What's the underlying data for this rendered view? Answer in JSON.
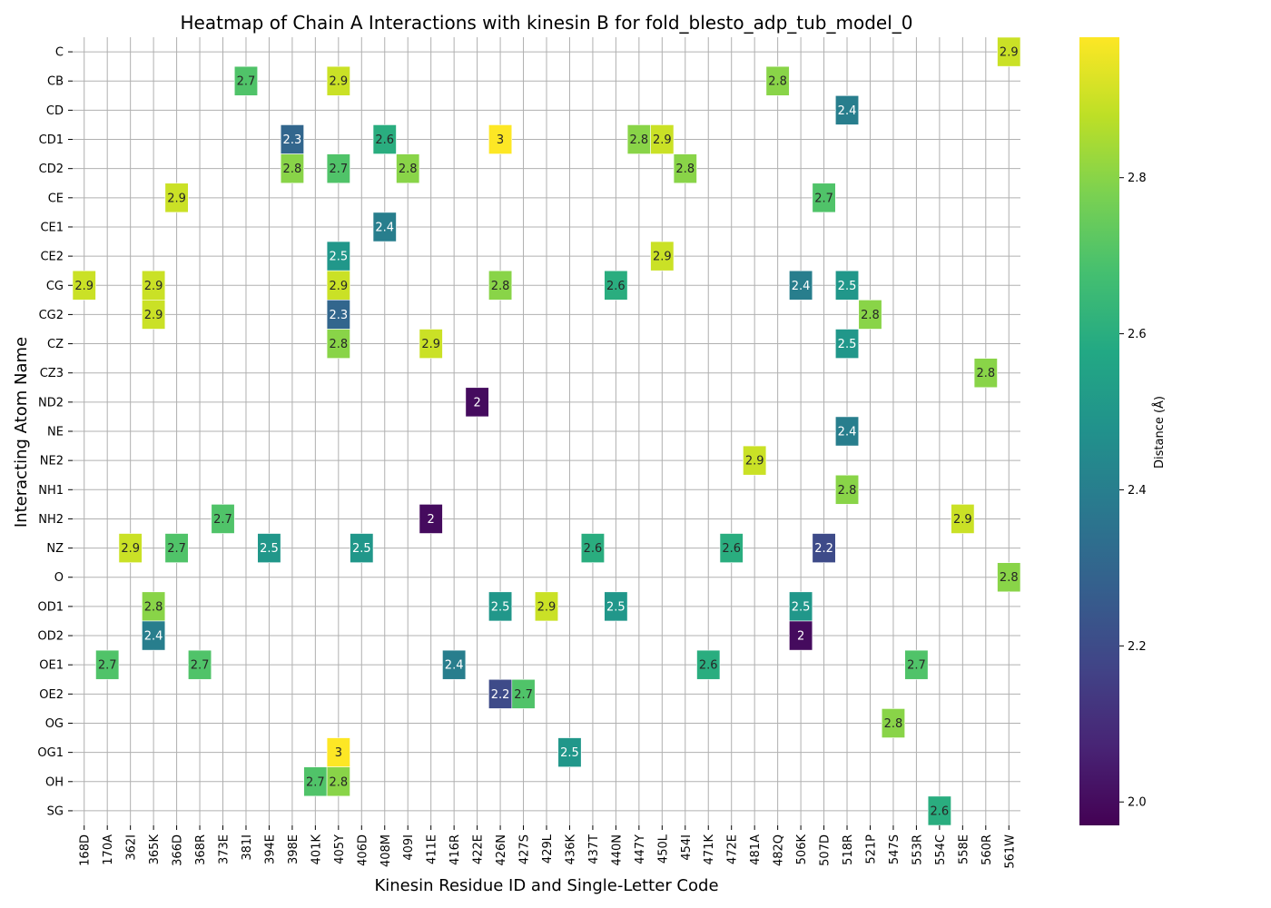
{
  "chart_data": {
    "type": "heatmap",
    "title": "Heatmap of Chain A Interactions with kinesin B for fold_blesto_adp_tub_model_0",
    "xlabel": "Kinesin Residue ID and Single-Letter Code",
    "ylabel": "Interacting Atom Name",
    "colorbar_label": "Distance (Å)",
    "colorbar_ticks": [
      "2.0",
      "2.2",
      "2.4",
      "2.6",
      "2.8"
    ],
    "colorbar_range": [
      1.97,
      2.98
    ],
    "colormap": "viridis",
    "grid": true,
    "x_categories": [
      "168D",
      "170A",
      "362I",
      "365K",
      "366D",
      "368R",
      "373E",
      "381I",
      "394E",
      "398E",
      "401K",
      "405Y",
      "406D",
      "408M",
      "409I",
      "411E",
      "416R",
      "422E",
      "426N",
      "427S",
      "429L",
      "436K",
      "437T",
      "440N",
      "447Y",
      "450L",
      "454I",
      "471K",
      "472E",
      "481A",
      "482Q",
      "506K",
      "507D",
      "518R",
      "521P",
      "547S",
      "553R",
      "554C",
      "558E",
      "560R",
      "561W"
    ],
    "y_categories": [
      "C",
      "CB",
      "CD",
      "CD1",
      "CD2",
      "CE",
      "CE1",
      "CE2",
      "CG",
      "CG2",
      "CZ",
      "CZ3",
      "ND2",
      "NE",
      "NE2",
      "NH1",
      "NH2",
      "NZ",
      "O",
      "OD1",
      "OD2",
      "OE1",
      "OE2",
      "OG",
      "OG1",
      "OH",
      "SG"
    ],
    "cells": [
      {
        "x": "561W",
        "y": "C",
        "value": 2.9
      },
      {
        "x": "381I",
        "y": "CB",
        "value": 2.7
      },
      {
        "x": "405Y",
        "y": "CB",
        "value": 2.9
      },
      {
        "x": "482Q",
        "y": "CB",
        "value": 2.8
      },
      {
        "x": "518R",
        "y": "CD",
        "value": 2.4
      },
      {
        "x": "398E",
        "y": "CD1",
        "value": 2.3
      },
      {
        "x": "408M",
        "y": "CD1",
        "value": 2.6
      },
      {
        "x": "426N",
        "y": "CD1",
        "value": 3
      },
      {
        "x": "447Y",
        "y": "CD1",
        "value": 2.8
      },
      {
        "x": "450L",
        "y": "CD1",
        "value": 2.9
      },
      {
        "x": "398E",
        "y": "CD2",
        "value": 2.8
      },
      {
        "x": "405Y",
        "y": "CD2",
        "value": 2.7
      },
      {
        "x": "409I",
        "y": "CD2",
        "value": 2.8
      },
      {
        "x": "454I",
        "y": "CD2",
        "value": 2.8
      },
      {
        "x": "366D",
        "y": "CE",
        "value": 2.9
      },
      {
        "x": "507D",
        "y": "CE",
        "value": 2.7
      },
      {
        "x": "408M",
        "y": "CE1",
        "value": 2.4
      },
      {
        "x": "405Y",
        "y": "CE2",
        "value": 2.5
      },
      {
        "x": "450L",
        "y": "CE2",
        "value": 2.9
      },
      {
        "x": "168D",
        "y": "CG",
        "value": 2.9
      },
      {
        "x": "365K",
        "y": "CG",
        "value": 2.9
      },
      {
        "x": "405Y",
        "y": "CG",
        "value": 2.9
      },
      {
        "x": "426N",
        "y": "CG",
        "value": 2.8
      },
      {
        "x": "440N",
        "y": "CG",
        "value": 2.6
      },
      {
        "x": "506K",
        "y": "CG",
        "value": 2.4
      },
      {
        "x": "518R",
        "y": "CG",
        "value": 2.5
      },
      {
        "x": "365K",
        "y": "CG2",
        "value": 2.9
      },
      {
        "x": "405Y",
        "y": "CG2",
        "value": 2.3
      },
      {
        "x": "521P",
        "y": "CG2",
        "value": 2.8
      },
      {
        "x": "405Y",
        "y": "CZ",
        "value": 2.8
      },
      {
        "x": "411E",
        "y": "CZ",
        "value": 2.9
      },
      {
        "x": "518R",
        "y": "CZ",
        "value": 2.5
      },
      {
        "x": "560R",
        "y": "CZ3",
        "value": 2.8
      },
      {
        "x": "422E",
        "y": "ND2",
        "value": 2
      },
      {
        "x": "518R",
        "y": "NE",
        "value": 2.4
      },
      {
        "x": "481A",
        "y": "NE2",
        "value": 2.9
      },
      {
        "x": "518R",
        "y": "NH1",
        "value": 2.8
      },
      {
        "x": "373E",
        "y": "NH2",
        "value": 2.7
      },
      {
        "x": "411E",
        "y": "NH2",
        "value": 2
      },
      {
        "x": "558E",
        "y": "NH2",
        "value": 2.9
      },
      {
        "x": "362I",
        "y": "NZ",
        "value": 2.9
      },
      {
        "x": "366D",
        "y": "NZ",
        "value": 2.7
      },
      {
        "x": "394E",
        "y": "NZ",
        "value": 2.5
      },
      {
        "x": "406D",
        "y": "NZ",
        "value": 2.5
      },
      {
        "x": "437T",
        "y": "NZ",
        "value": 2.6
      },
      {
        "x": "472E",
        "y": "NZ",
        "value": 2.6
      },
      {
        "x": "507D",
        "y": "NZ",
        "value": 2.2
      },
      {
        "x": "561W",
        "y": "O",
        "value": 2.8
      },
      {
        "x": "365K",
        "y": "OD1",
        "value": 2.8
      },
      {
        "x": "426N",
        "y": "OD1",
        "value": 2.5
      },
      {
        "x": "429L",
        "y": "OD1",
        "value": 2.9
      },
      {
        "x": "440N",
        "y": "OD1",
        "value": 2.5
      },
      {
        "x": "506K",
        "y": "OD1",
        "value": 2.5
      },
      {
        "x": "365K",
        "y": "OD2",
        "value": 2.4
      },
      {
        "x": "506K",
        "y": "OD2",
        "value": 2
      },
      {
        "x": "170A",
        "y": "OE1",
        "value": 2.7
      },
      {
        "x": "368R",
        "y": "OE1",
        "value": 2.7
      },
      {
        "x": "416R",
        "y": "OE1",
        "value": 2.4
      },
      {
        "x": "471K",
        "y": "OE1",
        "value": 2.6
      },
      {
        "x": "553R",
        "y": "OE1",
        "value": 2.7
      },
      {
        "x": "426N",
        "y": "OE2",
        "value": 2.2
      },
      {
        "x": "427S",
        "y": "OE2",
        "value": 2.7
      },
      {
        "x": "547S",
        "y": "OG",
        "value": 2.8
      },
      {
        "x": "405Y",
        "y": "OG1",
        "value": 3
      },
      {
        "x": "436K",
        "y": "OG1",
        "value": 2.5
      },
      {
        "x": "401K",
        "y": "OH",
        "value": 2.7
      },
      {
        "x": "405Y",
        "y": "OH",
        "value": 2.8
      },
      {
        "x": "554C",
        "y": "SG",
        "value": 2.6
      }
    ]
  }
}
